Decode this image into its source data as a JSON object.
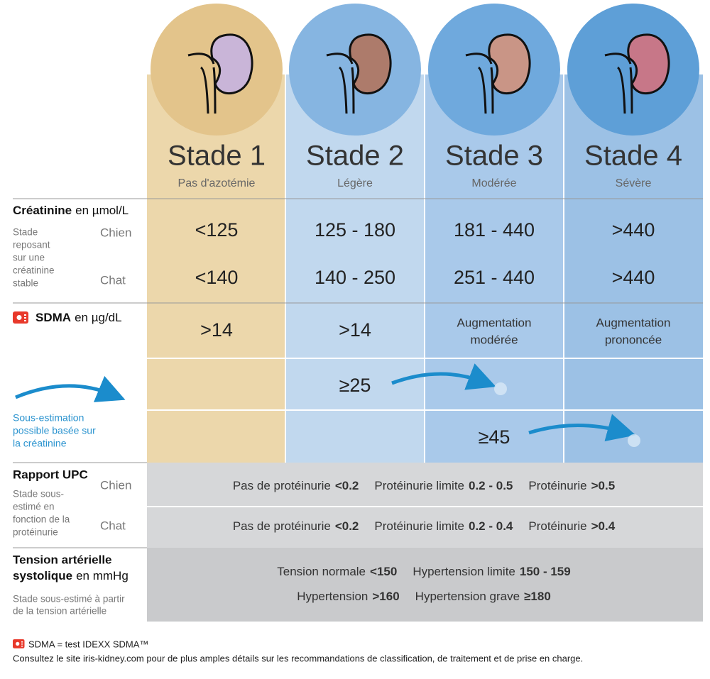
{
  "stages": [
    {
      "title": "Stade 1",
      "subtitle": "Pas d'azotémie"
    },
    {
      "title": "Stade 2",
      "subtitle": "Légère"
    },
    {
      "title": "Stade 3",
      "subtitle": "Modérée"
    },
    {
      "title": "Stade 4",
      "subtitle": "Sévère"
    }
  ],
  "creatinine": {
    "label": "Créatinine",
    "unit": "en µmol/L",
    "note": [
      "Stade",
      "reposant",
      "sur une",
      "créatinine",
      "stable"
    ],
    "rows": [
      {
        "species": "Chien",
        "values": [
          "<125",
          "125 - 180",
          "181 - 440",
          ">440"
        ]
      },
      {
        "species": "Chat",
        "values": [
          "<140",
          "140 - 250",
          "251 - 440",
          ">440"
        ]
      }
    ]
  },
  "sdma": {
    "label": "SDMA",
    "unit": "en µg/dL",
    "values": [
      [
        ">14"
      ],
      [
        ">14"
      ],
      [
        "Augmentation",
        "modérée"
      ],
      [
        "Augmentation",
        "prononcée"
      ]
    ],
    "thresholds": [
      "≥25",
      "≥45"
    ],
    "note": [
      "Sous-estimation",
      "possible basée sur",
      "la créatinine"
    ]
  },
  "upc": {
    "label": "Rapport UPC",
    "note": [
      "Stade sous-",
      "estimé en",
      "fonction de la",
      "protéinurie"
    ],
    "rows": [
      {
        "species": "Chien",
        "items": [
          {
            "label": "Pas de protéinurie",
            "value": "<0.2"
          },
          {
            "label": "Protéinurie limite",
            "value": "0.2 - 0.5"
          },
          {
            "label": "Protéinurie",
            "value": ">0.5"
          }
        ]
      },
      {
        "species": "Chat",
        "items": [
          {
            "label": "Pas de protéinurie",
            "value": "<0.2"
          },
          {
            "label": "Protéinurie limite",
            "value": "0.2 - 0.4"
          },
          {
            "label": "Protéinurie",
            "value": ">0.4"
          }
        ]
      }
    ]
  },
  "blood_pressure": {
    "label": [
      "Tension artérielle",
      "systolique"
    ],
    "unit": "en mmHg",
    "note": [
      "Stade sous-estimé à partir",
      "de la tension artérielle"
    ],
    "rows": [
      [
        {
          "label": "Tension normale",
          "value": "<150"
        },
        {
          "label": "Hypertension limite",
          "value": "150 - 159"
        }
      ],
      [
        {
          "label": "Hypertension",
          "value": ">160"
        },
        {
          "label": "Hypertension grave",
          "value": "≥180"
        }
      ]
    ]
  },
  "footer": {
    "legend": "SDMA = test IDEXX SDMA™",
    "text": "Consultez le site iris-kidney.com pour de plus amples détails sur les recommandations de classification, de traitement et de prise en charge."
  }
}
